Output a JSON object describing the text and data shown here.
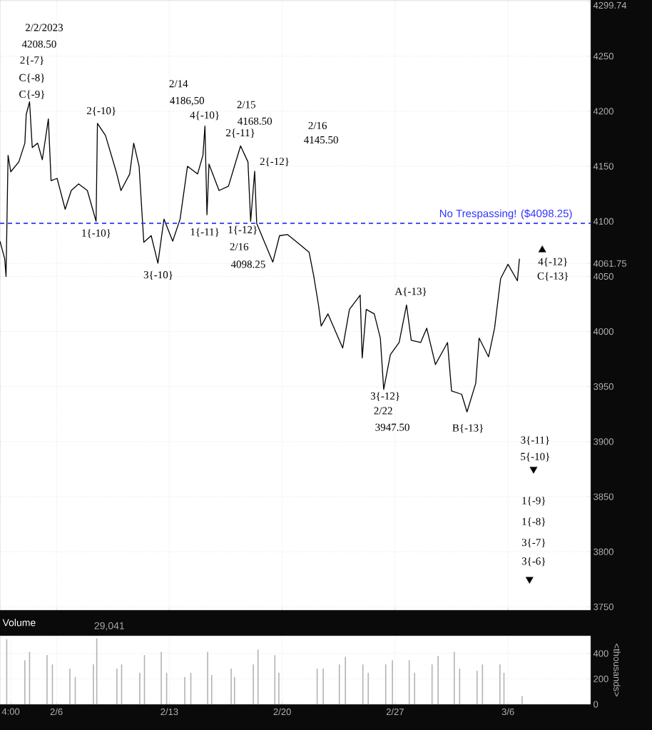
{
  "chart_data": [
    {
      "type": "line",
      "xlim": [
        "2023-02-02T12:00",
        "2023-03-11T03:00"
      ],
      "ylim": [
        3747,
        4301
      ],
      "xticks": [
        {
          "value": "2023-02-06",
          "label": null
        },
        {
          "value": "2023-02-13",
          "label": null
        },
        {
          "value": "2023-02-20",
          "label": null
        },
        {
          "value": "2023-02-27",
          "label": null
        },
        {
          "value": "2023-03-06",
          "label": null
        }
      ],
      "yticks": [
        3750,
        3800,
        3850,
        3900,
        3950,
        4000,
        4050,
        4061.75,
        4100,
        4150,
        4200,
        4250,
        4299.74
      ],
      "tick_labels": "y",
      "grid": true,
      "series": [
        {
          "type": "line",
          "color": "#000000",
          "x": [
            "2023-02-02T12:00",
            "2023-02-02T19:00",
            "2023-02-02T21:00",
            "2023-02-03T00:00",
            "2023-02-03T04:00",
            "2023-02-03T16:00",
            "2023-02-04T01:00",
            "2023-02-04T03:00",
            "2023-02-04T08:00",
            "2023-02-04T12:00",
            "2023-02-04T20:00",
            "2023-02-05T03:00",
            "2023-02-05T12:00",
            "2023-02-05T16:00",
            "2023-02-06T01:00",
            "2023-02-06T13:00",
            "2023-02-06T22:00",
            "2023-02-07T09:00",
            "2023-02-07T22:00",
            "2023-02-08T11:00",
            "2023-02-08T13:00",
            "2023-02-09T01:00",
            "2023-02-09T17:00",
            "2023-02-10T00:00",
            "2023-02-10T13:00",
            "2023-02-10T19:00",
            "2023-02-11T03:00",
            "2023-02-11T10:00",
            "2023-02-11T21:00",
            "2023-02-12T07:00",
            "2023-02-12T16:00",
            "2023-02-13T05:00",
            "2023-02-13T16:00",
            "2023-02-14T03:00",
            "2023-02-14T18:00",
            "2023-02-15T02:00",
            "2023-02-15T05:00",
            "2023-02-15T08:00",
            "2023-02-15T11:00",
            "2023-02-16T02:00",
            "2023-02-16T16:00",
            "2023-02-17T10:00",
            "2023-02-17T21:00",
            "2023-02-18T01:00",
            "2023-02-18T07:00",
            "2023-02-18T10:00",
            "2023-02-18T21:00",
            "2023-02-19T10:00",
            "2023-02-19T20:00",
            "2023-02-20T08:00",
            "2023-02-21T02:00",
            "2023-02-21T16:00",
            "2023-02-21T23:00",
            "2023-02-22T06:00",
            "2023-02-22T10:00",
            "2023-02-22T20:00",
            "2023-02-23T18:00",
            "2023-02-24T04:00",
            "2023-02-24T20:00",
            "2023-02-24T23:00",
            "2023-02-25T05:00",
            "2023-02-25T17:00",
            "2023-02-26T02:00",
            "2023-02-26T07:00",
            "2023-02-26T17:00",
            "2023-02-27T06:00",
            "2023-02-27T17:00",
            "2023-02-28T00:00",
            "2023-02-28T14:00",
            "2023-02-28T23:00",
            "2023-03-01T12:00",
            "2023-03-02T06:00",
            "2023-03-02T12:00",
            "2023-03-03T03:00",
            "2023-03-03T11:00",
            "2023-03-04T00:00",
            "2023-03-04T05:00",
            "2023-03-04T19:00",
            "2023-03-05T04:00",
            "2023-03-05T13:00",
            "2023-03-06T00:00",
            "2023-03-06T14:00",
            "2023-03-06T17:00"
          ],
          "values": [
            4082,
            4066,
            4050,
            4160,
            4145,
            4154,
            4171,
            4197,
            4208.5,
            4167,
            4171,
            4156,
            4193,
            4137,
            4139,
            4111,
            4128,
            4134,
            4128,
            4100,
            4189,
            4178,
            4145,
            4128,
            4143,
            4171,
            4150,
            4081,
            4087,
            4062,
            4102,
            4082,
            4102,
            4150,
            4143,
            4160,
            4186.5,
            4106,
            4152,
            4128,
            4132,
            4168.5,
            4154,
            4100,
            4145.5,
            4098.25,
            4082,
            4063,
            4087,
            4088,
            4079,
            4072,
            4050,
            4024,
            4005,
            4016,
            3985,
            4020,
            4033,
            3976,
            4020,
            4016,
            3994,
            3947.5,
            3979,
            3990,
            4024,
            3992,
            3990,
            4003,
            3970,
            3990,
            3946,
            3943,
            3927,
            3953,
            3994,
            3977,
            4003,
            4048,
            4061,
            4046,
            4066
          ]
        },
        {
          "type": "scatter",
          "color": "#000000",
          "marker": "triangle",
          "x": [
            "2023-03-08T03:00"
          ],
          "values": [
            4074
          ]
        },
        {
          "type": "scatter",
          "color": "#000000",
          "marker": "triangle-down",
          "x": [
            "2023-03-07T14:00",
            "2023-03-07T08:00"
          ],
          "values": [
            3875,
            3775
          ]
        }
      ],
      "ref_lines": [
        {
          "axis": "y",
          "value": 4098.25,
          "label": "No Trespassing! ($4098.25)",
          "color": "#3333ff",
          "line_style": "dashed"
        }
      ],
      "annotations": [
        "2/2/2023",
        "4208.50",
        "2{-7}",
        "C{-8}",
        "C{-9}",
        "2{-10}",
        "2/14",
        "4186,50",
        "4{-10}",
        "2/15",
        "4168.50",
        "2{-11}",
        "2/16",
        "4145.50",
        "2{-12}",
        "1{-10}",
        "1{-11}",
        "1{-12}",
        "2/16",
        "4098.25",
        "3{-10}",
        "A{-13}",
        "3{-12}",
        "2/22",
        "3947.50",
        "B{-13}",
        "4{-12}",
        "C{-13}",
        "3{-11}",
        "5{-10}",
        "1{-9}",
        "1{-8}",
        "3{-7}",
        "3{-6}"
      ]
    },
    {
      "type": "bar",
      "title": "Volume",
      "subtitle": "29,041",
      "ylabel": "<thousands>",
      "color": "#b3b3b3",
      "xlim": [
        "2023-02-02T12:00",
        "2023-03-11T03:00"
      ],
      "ylim": [
        0,
        539
      ],
      "yticks": [
        0,
        200,
        400
      ],
      "xticks": [
        {
          "value": "2023-02-03T04:00",
          "label": "4:00"
        },
        {
          "value": "2023-02-06",
          "label": "2/6"
        },
        {
          "value": "2023-02-13",
          "label": "2/13"
        },
        {
          "value": "2023-02-20",
          "label": "2/20"
        },
        {
          "value": "2023-02-27",
          "label": "2/27"
        },
        {
          "value": "2023-03-06",
          "label": "3/6"
        }
      ],
      "grid": true,
      "x": [
        "2023-02-02T22:00",
        "2023-02-04T01:00",
        "2023-02-04T08:00",
        "2023-02-05T10:00",
        "2023-02-05T18:00",
        "2023-02-06T20:00",
        "2023-02-07T04:00",
        "2023-02-08T07:00",
        "2023-02-08T12:00",
        "2023-02-09T18:00",
        "2023-02-10T01:00",
        "2023-02-11T04:00",
        "2023-02-11T11:00",
        "2023-02-12T12:00",
        "2023-02-12T20:00",
        "2023-02-13T23:00",
        "2023-02-14T08:00",
        "2023-02-15T09:00",
        "2023-02-15T15:00",
        "2023-02-16T20:00",
        "2023-02-17T01:00",
        "2023-02-18T05:00",
        "2023-02-18T12:00",
        "2023-02-19T13:00",
        "2023-02-19T19:00",
        "2023-02-22T04:00",
        "2023-02-22T13:00",
        "2023-02-23T13:00",
        "2023-02-23T22:00",
        "2023-02-25T00:00",
        "2023-02-25T08:00",
        "2023-02-26T10:00",
        "2023-02-26T20:00",
        "2023-02-27T21:00",
        "2023-02-28T05:00",
        "2023-03-01T07:00",
        "2023-03-01T16:00",
        "2023-03-02T16:00",
        "2023-03-03T00:00",
        "2023-03-04T02:00",
        "2023-03-04T10:00",
        "2023-03-05T12:00",
        "2023-03-05T18:00",
        "2023-03-06T21:00"
      ],
      "values": [
        512,
        347,
        413,
        387,
        314,
        281,
        215,
        314,
        519,
        281,
        314,
        248,
        387,
        413,
        248,
        215,
        248,
        413,
        231,
        281,
        215,
        314,
        430,
        387,
        248,
        281,
        281,
        314,
        374,
        314,
        248,
        314,
        347,
        347,
        248,
        314,
        380,
        413,
        281,
        264,
        314,
        314,
        248,
        66
      ]
    }
  ]
}
